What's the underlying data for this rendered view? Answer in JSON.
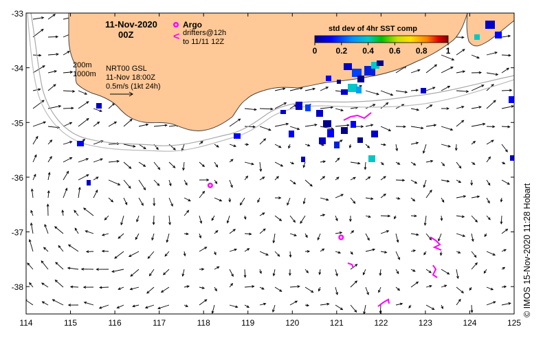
{
  "title": {
    "date": "11-Nov-2020",
    "time": "00Z"
  },
  "legend": {
    "argo_label": "Argo",
    "drifters_label": "drifters@12h",
    "drifters_sub": "to 11/11 12Z",
    "argo_color": "#ff00ff",
    "drifter_color": "#ff00ff",
    "contour_200": "200m",
    "contour_1000": "1000m",
    "product": "NRT00 GSL",
    "product_time": "11-Nov 18:00Z",
    "scale_label": "0.5m/s (1kt 24h)"
  },
  "colorbar": {
    "title": "std dev of 4hr SST comp",
    "ticks": [
      "0",
      "0.2",
      "0.4",
      "0.6",
      "0.8",
      "1"
    ],
    "colors": [
      "#00008b",
      "#0000ff",
      "#0080ff",
      "#00c0c0",
      "#00c000",
      "#c0e000",
      "#ffe000",
      "#ff8000",
      "#e00000",
      "#800000"
    ]
  },
  "axes": {
    "x_ticks": [
      "114",
      "115",
      "116",
      "117",
      "118",
      "119",
      "120",
      "121",
      "122",
      "123",
      "124",
      "125"
    ],
    "y_ticks": [
      "-33",
      "-34",
      "-35",
      "-36",
      "-37",
      "-38"
    ],
    "lon_range": [
      114,
      125
    ],
    "lat_range": [
      -38.5,
      -33
    ]
  },
  "land_color": "#ffc896",
  "credit": "© IMOS 15-Nov-2020 11:28 Hobart",
  "chart_data": {
    "type": "map",
    "argo_floats": [
      {
        "lon": 118.15,
        "lat": -36.15
      },
      {
        "lon": 121.1,
        "lat": -37.1
      }
    ],
    "drifters": [
      {
        "lon": 121.4,
        "lat": -34.85
      },
      {
        "lon": 121.4,
        "lat": -37.6
      },
      {
        "lon": 122.1,
        "lat": -38.3
      },
      {
        "lon": 123.2,
        "lat": -37.2
      },
      {
        "lon": 123.2,
        "lat": -37.7
      }
    ]
  }
}
